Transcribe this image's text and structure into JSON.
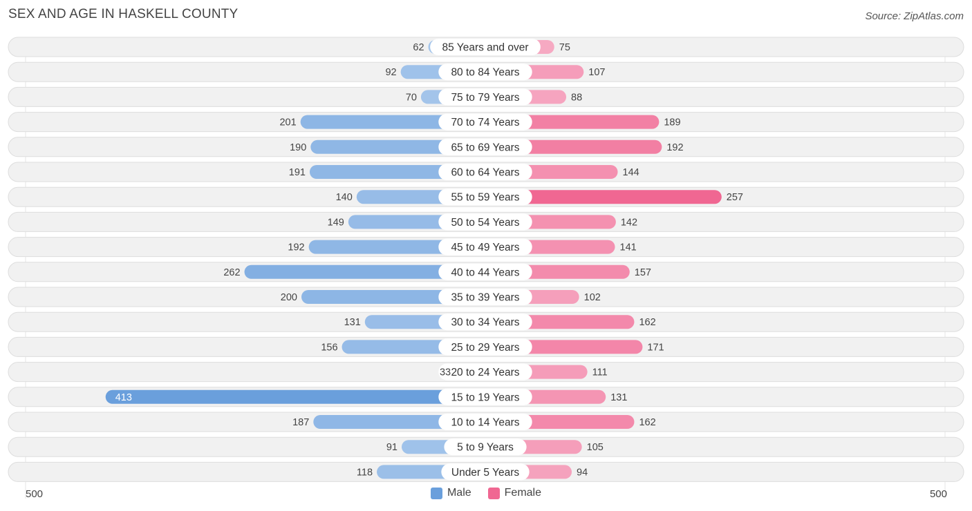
{
  "title": "SEX AND AGE IN HASKELL COUNTY",
  "source": "Source: ZipAtlas.com",
  "colors": {
    "male_light": "#a9c8ec",
    "male_dark": "#6a9fdc",
    "female_light": "#f6a9c2",
    "female_dark": "#f06792",
    "row_bg": "#f1f1f1",
    "row_border": "#dddddd"
  },
  "legend": {
    "male": "Male",
    "female": "Female"
  },
  "axis": {
    "left_label": "500",
    "right_label": "500"
  },
  "chart_data": {
    "type": "bar",
    "orientation": "horizontal-diverging",
    "categories": [
      "85 Years and over",
      "80 to 84 Years",
      "75 to 79 Years",
      "70 to 74 Years",
      "65 to 69 Years",
      "60 to 64 Years",
      "55 to 59 Years",
      "50 to 54 Years",
      "45 to 49 Years",
      "40 to 44 Years",
      "35 to 39 Years",
      "30 to 34 Years",
      "25 to 29 Years",
      "20 to 24 Years",
      "15 to 19 Years",
      "10 to 14 Years",
      "5 to 9 Years",
      "Under 5 Years"
    ],
    "series": [
      {
        "name": "Male",
        "values": [
          62,
          92,
          70,
          201,
          190,
          191,
          140,
          149,
          192,
          262,
          200,
          131,
          156,
          33,
          413,
          187,
          91,
          118
        ]
      },
      {
        "name": "Female",
        "values": [
          75,
          107,
          88,
          189,
          192,
          144,
          257,
          142,
          141,
          157,
          102,
          162,
          171,
          111,
          131,
          162,
          105,
          94
        ]
      }
    ],
    "xlim": [
      -500,
      500
    ],
    "legend_position": "bottom-center"
  }
}
